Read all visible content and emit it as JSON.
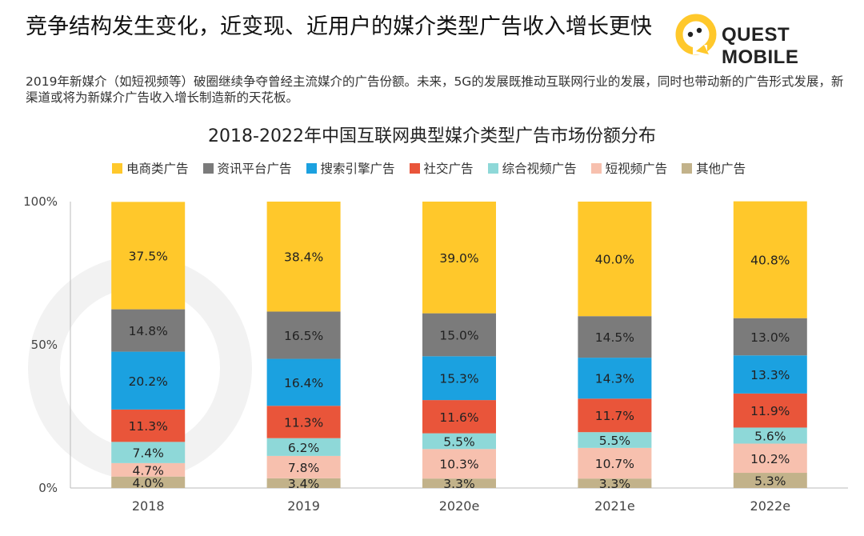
{
  "header": {
    "title": "竞争结构发生变化，近变现、近用户的媒介类型广告收入增长更快",
    "subtitle": "2019年新媒介（如短视频等）破圈继续争夺曾经主流媒介的广告份额。未来，5G的发展既推动互联网行业的发展，同时也带动新的广告形式发展，新渠道或将为新媒介广告收入增长制造新的天花板。",
    "logo_text": "QUEST MOBILE"
  },
  "chart_data": {
    "type": "bar",
    "stacked": true,
    "title": "2018-2022年中国互联网典型媒介类型广告市场份额分布",
    "categories": [
      "2018",
      "2019",
      "2020e",
      "2021e",
      "2022e"
    ],
    "yticks": [
      "0%",
      "50%",
      "100%"
    ],
    "ylim": [
      0,
      100
    ],
    "legend_position": "top",
    "series": [
      {
        "name": "其他广告",
        "color": "#C2B28A",
        "values": [
          4.0,
          3.4,
          3.3,
          3.3,
          5.3
        ],
        "labels": [
          "4.0%",
          "3.4%",
          "3.3%",
          "3.3%",
          "5.3%"
        ]
      },
      {
        "name": "短视频广告",
        "color": "#F7C0AE",
        "values": [
          4.7,
          7.8,
          10.3,
          10.7,
          10.2
        ],
        "labels": [
          "4.7%",
          "7.8%",
          "10.3%",
          "10.7%",
          "10.2%"
        ]
      },
      {
        "name": "综合视频广告",
        "color": "#8ED8D8",
        "values": [
          7.4,
          6.2,
          5.5,
          5.5,
          5.6
        ],
        "labels": [
          "7.4%",
          "6.2%",
          "5.5%",
          "5.5%",
          "5.6%"
        ]
      },
      {
        "name": "社交广告",
        "color": "#E9553A",
        "values": [
          11.3,
          11.3,
          11.6,
          11.7,
          11.9
        ],
        "labels": [
          "11.3%",
          "11.3%",
          "11.6%",
          "11.7%",
          "11.9%"
        ]
      },
      {
        "name": "搜索引擎广告",
        "color": "#1BA1E0",
        "values": [
          20.2,
          16.4,
          15.3,
          14.3,
          13.3
        ],
        "labels": [
          "20.2%",
          "16.4%",
          "15.3%",
          "14.3%",
          "13.3%"
        ]
      },
      {
        "name": "资讯平台广告",
        "color": "#7B7B7B",
        "values": [
          14.8,
          16.5,
          15.0,
          14.5,
          13.0
        ],
        "labels": [
          "14.8%",
          "16.5%",
          "15.0%",
          "14.5%",
          "13.0%"
        ]
      },
      {
        "name": "电商类广告",
        "color": "#FFC82B",
        "values": [
          37.5,
          38.4,
          39.0,
          40.0,
          40.8
        ],
        "labels": [
          "37.5%",
          "38.4%",
          "39.0%",
          "40.0%",
          "40.8%"
        ]
      }
    ],
    "legend": [
      {
        "name": "电商类广告",
        "color": "#FFC82B"
      },
      {
        "name": "资讯平台广告",
        "color": "#7B7B7B"
      },
      {
        "name": "搜索引擎广告",
        "color": "#1BA1E0"
      },
      {
        "name": "社交广告",
        "color": "#E9553A"
      },
      {
        "name": "综合视频广告",
        "color": "#8ED8D8"
      },
      {
        "name": "短视频广告",
        "color": "#F7C0AE"
      },
      {
        "name": "其他广告",
        "color": "#C2B28A"
      }
    ]
  }
}
